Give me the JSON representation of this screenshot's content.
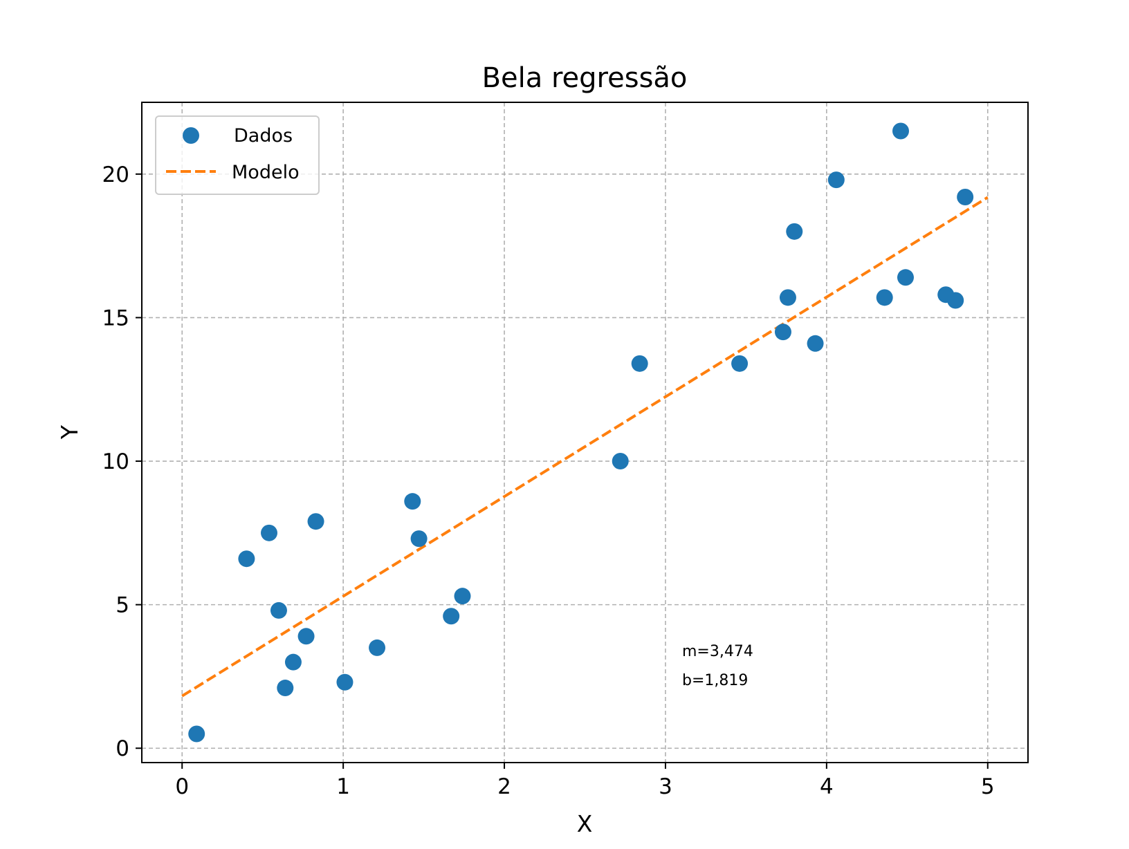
{
  "chart_data": {
    "type": "scatter",
    "title": "Bela regressão",
    "xlabel": "X",
    "ylabel": "Y",
    "xlim": [
      -0.25,
      5.25
    ],
    "ylim": [
      -0.5,
      22.5
    ],
    "xticks": [
      0,
      1,
      2,
      3,
      4,
      5
    ],
    "xtick_labels": [
      "0",
      "1",
      "2",
      "3",
      "4",
      "5"
    ],
    "yticks": [
      0,
      5,
      10,
      15,
      20
    ],
    "ytick_labels": [
      "0",
      "5",
      "10",
      "15",
      "20"
    ],
    "grid": true,
    "legend_position": "top-left",
    "series": [
      {
        "name": "Dados",
        "kind": "scatter",
        "color": "#1f77b4",
        "points": [
          {
            "x": 0.09,
            "y": 0.5
          },
          {
            "x": 0.4,
            "y": 6.6
          },
          {
            "x": 0.54,
            "y": 7.5
          },
          {
            "x": 0.6,
            "y": 4.8
          },
          {
            "x": 0.64,
            "y": 2.1
          },
          {
            "x": 0.69,
            "y": 3.0
          },
          {
            "x": 0.77,
            "y": 3.9
          },
          {
            "x": 0.83,
            "y": 7.9
          },
          {
            "x": 1.01,
            "y": 2.3
          },
          {
            "x": 1.21,
            "y": 3.5
          },
          {
            "x": 1.43,
            "y": 8.6
          },
          {
            "x": 1.47,
            "y": 7.3
          },
          {
            "x": 1.67,
            "y": 4.6
          },
          {
            "x": 1.74,
            "y": 5.3
          },
          {
            "x": 2.72,
            "y": 10.0
          },
          {
            "x": 2.84,
            "y": 13.4
          },
          {
            "x": 3.46,
            "y": 13.4
          },
          {
            "x": 3.73,
            "y": 14.5
          },
          {
            "x": 3.76,
            "y": 15.7
          },
          {
            "x": 3.8,
            "y": 18.0
          },
          {
            "x": 3.93,
            "y": 14.1
          },
          {
            "x": 4.06,
            "y": 19.8
          },
          {
            "x": 4.36,
            "y": 15.7
          },
          {
            "x": 4.46,
            "y": 21.5
          },
          {
            "x": 4.49,
            "y": 16.4
          },
          {
            "x": 4.74,
            "y": 15.8
          },
          {
            "x": 4.8,
            "y": 15.6
          },
          {
            "x": 4.86,
            "y": 19.2
          }
        ]
      },
      {
        "name": "Modelo",
        "kind": "line",
        "style": "dashed",
        "color": "#ff7f0e",
        "x": [
          0,
          5
        ],
        "y": [
          1.819,
          19.189
        ]
      }
    ],
    "annotations": [
      "m=3,474",
      "b=1,819"
    ]
  }
}
